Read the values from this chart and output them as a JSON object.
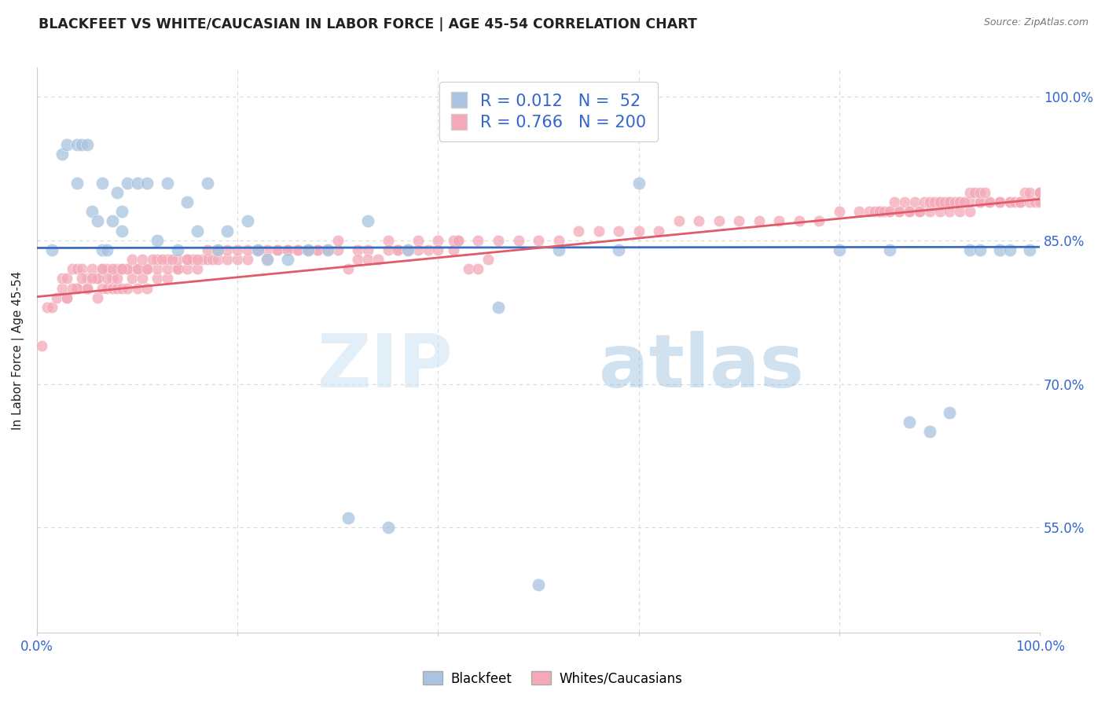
{
  "title": "BLACKFEET VS WHITE/CAUCASIAN IN LABOR FORCE | AGE 45-54 CORRELATION CHART",
  "source": "Source: ZipAtlas.com",
  "ylabel": "In Labor Force | Age 45-54",
  "xlim": [
    0.0,
    1.0
  ],
  "ylim": [
    0.44,
    1.03
  ],
  "yticks": [
    0.55,
    0.7,
    0.85,
    1.0
  ],
  "ytick_labels": [
    "55.0%",
    "70.0%",
    "85.0%",
    "100.0%"
  ],
  "xticks": [
    0.0,
    0.2,
    0.4,
    0.6,
    0.8,
    1.0
  ],
  "blue_R": 0.012,
  "blue_N": 52,
  "pink_R": 0.766,
  "pink_N": 200,
  "blue_color": "#a8c4e0",
  "pink_color": "#f4a8b8",
  "blue_line_color": "#3a6fbf",
  "pink_line_color": "#e05a6a",
  "legend_label_blue": "Blackfeet",
  "legend_label_pink": "Whites/Caucasians",
  "watermark_zip": "ZIP",
  "watermark_atlas": "atlas",
  "background_color": "#ffffff",
  "grid_color": "#d8d8d8",
  "title_color": "#222222",
  "axis_label_color": "#222222",
  "tick_label_color": "#3366cc",
  "blue_line_y0": 0.842,
  "blue_line_y1": 0.843,
  "pink_line_y0": 0.791,
  "pink_line_y1": 0.893,
  "blue_scatter_x": [
    0.015,
    0.025,
    0.03,
    0.04,
    0.04,
    0.045,
    0.05,
    0.055,
    0.06,
    0.065,
    0.065,
    0.07,
    0.075,
    0.08,
    0.085,
    0.085,
    0.09,
    0.1,
    0.11,
    0.12,
    0.13,
    0.14,
    0.15,
    0.16,
    0.17,
    0.18,
    0.19,
    0.21,
    0.22,
    0.23,
    0.25,
    0.27,
    0.29,
    0.31,
    0.33,
    0.35,
    0.37,
    0.46,
    0.5,
    0.52,
    0.58,
    0.6,
    0.8,
    0.85,
    0.87,
    0.89,
    0.91,
    0.93,
    0.94,
    0.96,
    0.97,
    0.99
  ],
  "blue_scatter_y": [
    0.84,
    0.94,
    0.95,
    0.95,
    0.91,
    0.95,
    0.95,
    0.88,
    0.87,
    0.91,
    0.84,
    0.84,
    0.87,
    0.9,
    0.88,
    0.86,
    0.91,
    0.91,
    0.91,
    0.85,
    0.91,
    0.84,
    0.89,
    0.86,
    0.91,
    0.84,
    0.86,
    0.87,
    0.84,
    0.83,
    0.83,
    0.84,
    0.84,
    0.56,
    0.87,
    0.55,
    0.84,
    0.78,
    0.49,
    0.84,
    0.84,
    0.91,
    0.84,
    0.84,
    0.66,
    0.65,
    0.67,
    0.84,
    0.84,
    0.84,
    0.84,
    0.84
  ],
  "pink_scatter_x": [
    0.005,
    0.01,
    0.015,
    0.02,
    0.025,
    0.025,
    0.03,
    0.03,
    0.035,
    0.04,
    0.04,
    0.045,
    0.05,
    0.05,
    0.055,
    0.06,
    0.06,
    0.065,
    0.065,
    0.07,
    0.07,
    0.075,
    0.075,
    0.08,
    0.08,
    0.085,
    0.085,
    0.09,
    0.09,
    0.095,
    0.1,
    0.1,
    0.105,
    0.11,
    0.11,
    0.12,
    0.12,
    0.13,
    0.13,
    0.14,
    0.14,
    0.15,
    0.15,
    0.155,
    0.16,
    0.165,
    0.17,
    0.175,
    0.18,
    0.19,
    0.2,
    0.21,
    0.22,
    0.23,
    0.24,
    0.25,
    0.26,
    0.27,
    0.28,
    0.3,
    0.32,
    0.33,
    0.35,
    0.36,
    0.38,
    0.4,
    0.42,
    0.44,
    0.46,
    0.48,
    0.5,
    0.52,
    0.54,
    0.56,
    0.58,
    0.6,
    0.62,
    0.64,
    0.66,
    0.68,
    0.7,
    0.72,
    0.74,
    0.76,
    0.78,
    0.8,
    0.82,
    0.84,
    0.85,
    0.86,
    0.87,
    0.88,
    0.89,
    0.9,
    0.9,
    0.91,
    0.91,
    0.92,
    0.92,
    0.93,
    0.93,
    0.94,
    0.94,
    0.95,
    0.95,
    0.96,
    0.96,
    0.97,
    0.97,
    0.975,
    0.98,
    0.98,
    0.985,
    0.99,
    0.99,
    0.995,
    1.0,
    1.0,
    1.0,
    1.0,
    0.03,
    0.04,
    0.05,
    0.06,
    0.07,
    0.08,
    0.09,
    0.1,
    0.11,
    0.12,
    0.13,
    0.14,
    0.15,
    0.16,
    0.17,
    0.18,
    0.19,
    0.2,
    0.21,
    0.22,
    0.23,
    0.24,
    0.25,
    0.26,
    0.27,
    0.28,
    0.29,
    0.3,
    0.035,
    0.045,
    0.055,
    0.065,
    0.075,
    0.085,
    0.095,
    0.105,
    0.115,
    0.125,
    0.135,
    0.31,
    0.32,
    0.33,
    0.34,
    0.35,
    0.36,
    0.37,
    0.38,
    0.39,
    0.4,
    0.415,
    0.415,
    0.42,
    0.43,
    0.44,
    0.45,
    0.83,
    0.835,
    0.84,
    0.845,
    0.85,
    0.855,
    0.86,
    0.865,
    0.87,
    0.875,
    0.88,
    0.885,
    0.89,
    0.895,
    0.9,
    0.905,
    0.91,
    0.915,
    0.92,
    0.925,
    0.93,
    0.935,
    0.94,
    0.945
  ],
  "pink_scatter_y": [
    0.74,
    0.78,
    0.78,
    0.79,
    0.8,
    0.81,
    0.79,
    0.81,
    0.82,
    0.8,
    0.82,
    0.82,
    0.8,
    0.81,
    0.82,
    0.79,
    0.81,
    0.8,
    0.82,
    0.8,
    0.82,
    0.8,
    0.81,
    0.8,
    0.82,
    0.8,
    0.82,
    0.8,
    0.82,
    0.81,
    0.8,
    0.82,
    0.81,
    0.8,
    0.82,
    0.81,
    0.82,
    0.81,
    0.82,
    0.82,
    0.82,
    0.82,
    0.83,
    0.83,
    0.82,
    0.83,
    0.83,
    0.83,
    0.83,
    0.83,
    0.83,
    0.83,
    0.84,
    0.83,
    0.84,
    0.84,
    0.84,
    0.84,
    0.84,
    0.84,
    0.84,
    0.84,
    0.85,
    0.84,
    0.85,
    0.85,
    0.85,
    0.85,
    0.85,
    0.85,
    0.85,
    0.85,
    0.86,
    0.86,
    0.86,
    0.86,
    0.86,
    0.87,
    0.87,
    0.87,
    0.87,
    0.87,
    0.87,
    0.87,
    0.87,
    0.88,
    0.88,
    0.88,
    0.88,
    0.88,
    0.88,
    0.88,
    0.88,
    0.88,
    0.89,
    0.88,
    0.89,
    0.88,
    0.89,
    0.88,
    0.89,
    0.89,
    0.89,
    0.89,
    0.89,
    0.89,
    0.89,
    0.89,
    0.89,
    0.89,
    0.89,
    0.89,
    0.9,
    0.89,
    0.9,
    0.89,
    0.9,
    0.89,
    0.9,
    0.9,
    0.79,
    0.8,
    0.8,
    0.81,
    0.81,
    0.81,
    0.82,
    0.82,
    0.82,
    0.83,
    0.83,
    0.83,
    0.83,
    0.83,
    0.84,
    0.84,
    0.84,
    0.84,
    0.84,
    0.84,
    0.84,
    0.84,
    0.84,
    0.84,
    0.84,
    0.84,
    0.84,
    0.85,
    0.8,
    0.81,
    0.81,
    0.82,
    0.82,
    0.82,
    0.83,
    0.83,
    0.83,
    0.83,
    0.83,
    0.82,
    0.83,
    0.83,
    0.83,
    0.84,
    0.84,
    0.84,
    0.84,
    0.84,
    0.84,
    0.84,
    0.85,
    0.85,
    0.82,
    0.82,
    0.83,
    0.88,
    0.88,
    0.88,
    0.88,
    0.88,
    0.89,
    0.88,
    0.89,
    0.88,
    0.89,
    0.88,
    0.89,
    0.89,
    0.89,
    0.89,
    0.89,
    0.89,
    0.89,
    0.89,
    0.89,
    0.9,
    0.9,
    0.9,
    0.9
  ]
}
